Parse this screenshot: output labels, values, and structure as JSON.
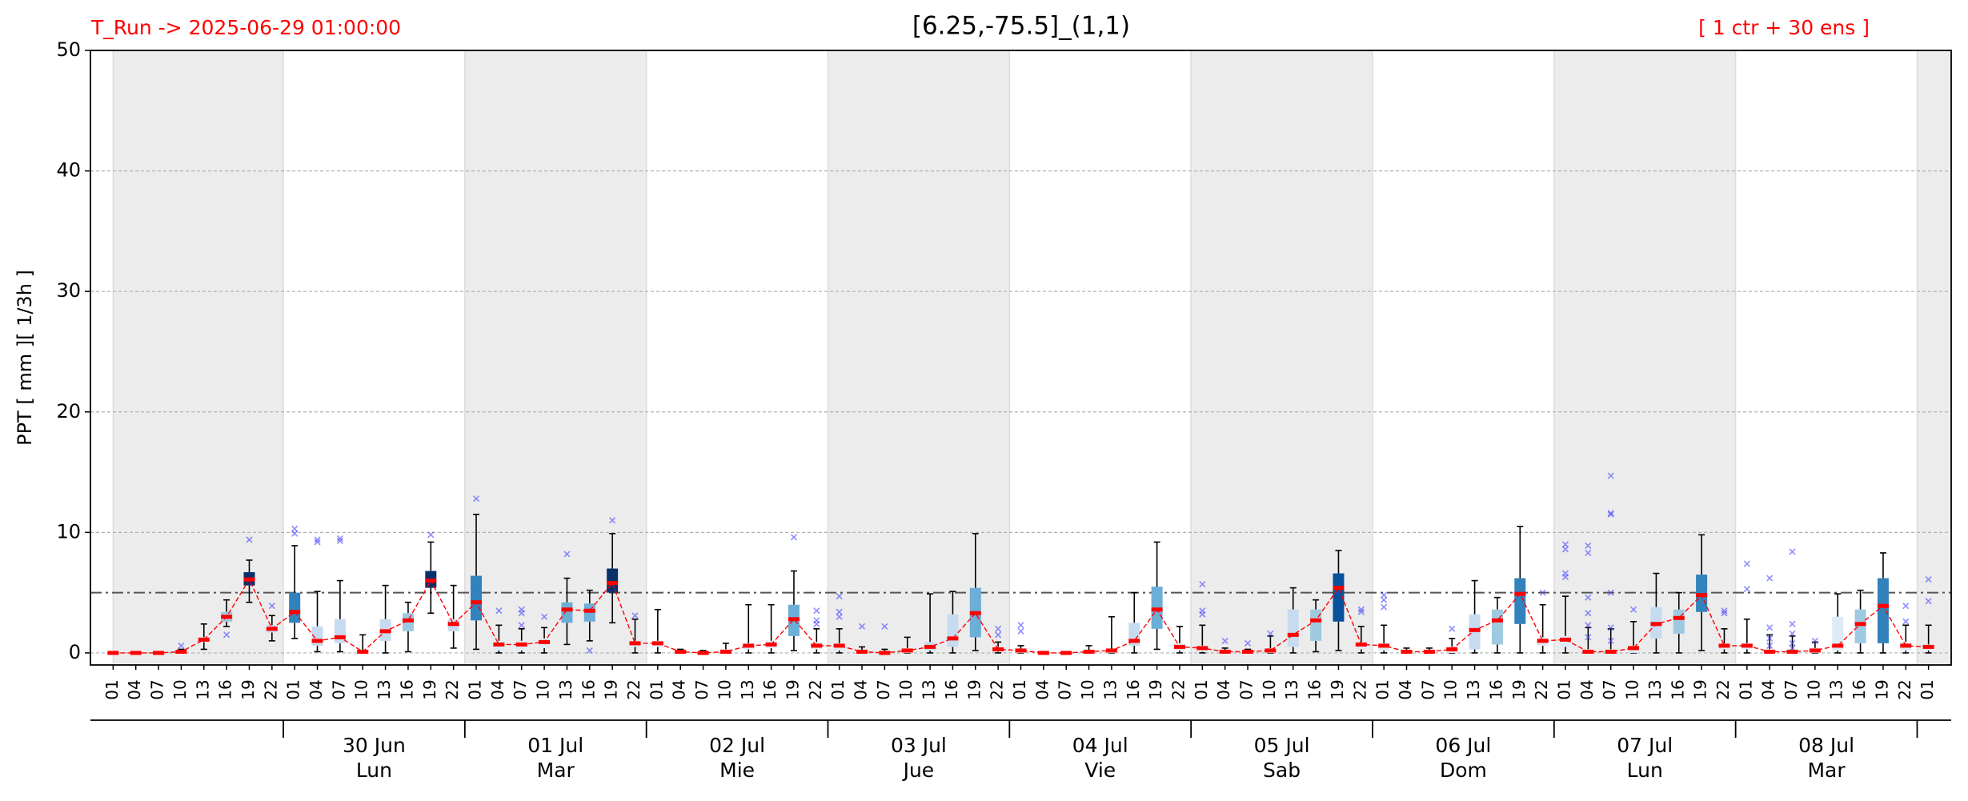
{
  "chart_data": {
    "type": "box",
    "title": "[6.25,-75.5]_(1,1)",
    "run_label": "T_Run -> 2025-06-29  01:00:00",
    "members_label": "[ 1 ctr + 30 ens ]",
    "y_label": "PPT  [ mm ][ 1/3h ]",
    "categories": [
      "01",
      "04",
      "07",
      "10",
      "13",
      "16",
      "19",
      "22",
      "01",
      "04",
      "07",
      "10",
      "13",
      "16",
      "19",
      "22",
      "01",
      "04",
      "07",
      "10",
      "13",
      "16",
      "19",
      "22",
      "01",
      "04",
      "07",
      "10",
      "13",
      "16",
      "19",
      "22",
      "01",
      "04",
      "07",
      "10",
      "13",
      "16",
      "19",
      "22",
      "01",
      "04",
      "07",
      "10",
      "13",
      "16",
      "19",
      "22",
      "01",
      "04",
      "07",
      "10",
      "13",
      "16",
      "19",
      "22",
      "01",
      "04",
      "07",
      "10",
      "13",
      "16",
      "19",
      "22",
      "01",
      "04",
      "07",
      "10",
      "13",
      "16",
      "19",
      "22",
      "01",
      "04",
      "07",
      "10",
      "13",
      "16",
      "19",
      "22",
      "01"
    ],
    "days": [
      {
        "date": "30 Jun",
        "weekday": "Lun"
      },
      {
        "date": "01 Jul",
        "weekday": "Mar"
      },
      {
        "date": "02 Jul",
        "weekday": "Mie"
      },
      {
        "date": "03 Jul",
        "weekday": "Jue"
      },
      {
        "date": "04 Jul",
        "weekday": "Vie"
      },
      {
        "date": "05 Jul",
        "weekday": "Sab"
      },
      {
        "date": "06 Jul",
        "weekday": "Dom"
      },
      {
        "date": "07 Jul",
        "weekday": "Lun"
      },
      {
        "date": "08 Jul",
        "weekday": "Mar"
      }
    ],
    "median": [
      0,
      0,
      0,
      0.1,
      1.1,
      3.0,
      6.1,
      2.0,
      3.4,
      1.0,
      1.3,
      0.1,
      1.8,
      2.7,
      6.0,
      2.4,
      4.2,
      0.7,
      0.7,
      0.9,
      3.6,
      3.5,
      5.8,
      0.8,
      0.8,
      0.1,
      0,
      0.1,
      0.6,
      0.7,
      2.8,
      0.6,
      0.6,
      0.1,
      0,
      0.2,
      0.5,
      1.2,
      3.3,
      0.3,
      0.2,
      0,
      0,
      0.1,
      0.2,
      1.0,
      3.6,
      0.5,
      0.4,
      0.1,
      0.1,
      0.2,
      1.5,
      2.7,
      5.4,
      0.7,
      0.6,
      0.1,
      0.1,
      0.3,
      1.9,
      2.7,
      4.9,
      1.0,
      1.1,
      0.1,
      0.1,
      0.4,
      2.4,
      2.9,
      4.8,
      0.6,
      0.6,
      0.1,
      0.1,
      0.2,
      0.6,
      2.4,
      3.9,
      0.6,
      0.5
    ],
    "q1": [
      0,
      0,
      0,
      0,
      0.9,
      2.6,
      5.6,
      1.7,
      2.5,
      0.6,
      0.8,
      0,
      1.0,
      1.8,
      5.4,
      1.8,
      2.7,
      0.2,
      0.2,
      0.4,
      2.5,
      2.6,
      5.0,
      0.5,
      0.5,
      0,
      0,
      0,
      0.3,
      0.4,
      1.4,
      0.3,
      0.2,
      0,
      0,
      0,
      0.2,
      0.5,
      1.3,
      0.1,
      0,
      0,
      0,
      0,
      0,
      0.6,
      2.0,
      0.2,
      0.1,
      0,
      0,
      0,
      0.5,
      1.0,
      2.6,
      0.3,
      0.2,
      0,
      0,
      0,
      0.3,
      0.7,
      2.4,
      0.6,
      0.5,
      0,
      0,
      0,
      1.2,
      1.6,
      3.4,
      0.3,
      0.3,
      0,
      0,
      0,
      0.2,
      0.8,
      0.8,
      0.2,
      0.2
    ],
    "q3": [
      0,
      0,
      0,
      0.2,
      1.3,
      3.4,
      6.7,
      2.3,
      5.0,
      2.2,
      2.8,
      0.2,
      2.8,
      3.3,
      6.8,
      2.8,
      6.4,
      1.0,
      1.0,
      1.2,
      4.2,
      4.1,
      7.0,
      1.0,
      1.0,
      0.2,
      0.1,
      0.3,
      0.8,
      1.0,
      4.0,
      0.9,
      0.8,
      0.2,
      0.1,
      0.4,
      0.9,
      3.2,
      5.4,
      0.5,
      0.3,
      0,
      0,
      0.2,
      0.3,
      2.5,
      5.5,
      0.8,
      0.6,
      0.2,
      0.2,
      0.4,
      3.6,
      3.6,
      6.6,
      0.9,
      0.8,
      0.2,
      0.2,
      0.5,
      3.2,
      3.6,
      6.2,
      1.3,
      1.4,
      0.3,
      0.3,
      0.6,
      3.8,
      3.6,
      6.5,
      0.8,
      0.8,
      0.3,
      0.3,
      0.4,
      3.0,
      3.6,
      6.2,
      0.9,
      0.7
    ],
    "whisker_low": [
      0,
      0,
      0,
      0,
      0.3,
      2.2,
      4.2,
      1.0,
      1.2,
      0.1,
      0.1,
      0,
      0,
      0.1,
      3.3,
      0.4,
      0.3,
      0,
      0,
      0,
      0.7,
      1.0,
      2.5,
      0,
      0,
      0,
      0,
      0,
      0,
      0,
      0.2,
      0,
      0,
      0,
      0,
      0,
      0,
      0,
      0.2,
      0,
      0,
      0,
      0,
      0,
      0,
      0,
      0.3,
      0,
      0,
      0,
      0,
      0,
      0,
      0.1,
      0.2,
      0,
      0,
      0,
      0,
      0,
      0,
      0,
      0,
      0,
      0,
      0,
      0,
      0,
      0,
      0,
      0.2,
      0,
      0,
      0,
      0,
      0,
      0,
      0,
      0,
      0,
      0
    ],
    "whisker_high": [
      0,
      0,
      0,
      0.3,
      2.4,
      4.4,
      7.7,
      3.1,
      8.9,
      5.1,
      6.0,
      1.5,
      5.6,
      4.2,
      9.2,
      5.6,
      11.5,
      2.3,
      2.0,
      2.1,
      6.2,
      5.2,
      9.9,
      2.8,
      3.6,
      0.3,
      0.2,
      0.8,
      4.0,
      4.0,
      6.8,
      2.0,
      2.0,
      0.5,
      0.3,
      1.3,
      4.9,
      5.1,
      9.9,
      0.9,
      0.6,
      0.1,
      0.1,
      0.6,
      3.0,
      5.0,
      9.2,
      2.2,
      2.3,
      0.4,
      0.3,
      1.4,
      5.4,
      4.4,
      8.5,
      2.2,
      2.3,
      0.4,
      0.4,
      1.2,
      6.0,
      4.6,
      10.5,
      4.0,
      4.7,
      2.1,
      2.0,
      2.6,
      6.6,
      5.0,
      9.8,
      2.0,
      2.8,
      1.5,
      1.4,
      0.9,
      4.9,
      5.2,
      8.3,
      2.3,
      2.3
    ],
    "outliers": [
      [],
      [],
      [],
      [
        0.6
      ],
      [],
      [
        1.5
      ],
      [
        9.4
      ],
      [
        3.9
      ],
      [
        10.3,
        9.9
      ],
      [
        9.4,
        9.2
      ],
      [
        9.5,
        9.3
      ],
      [],
      [],
      [],
      [
        9.8
      ],
      [],
      [
        12.8
      ],
      [
        3.5
      ],
      [
        3.6,
        3.3,
        2.3
      ],
      [
        3.0
      ],
      [
        8.2
      ],
      [
        0.2
      ],
      [
        11.0
      ],
      [
        3.1
      ],
      [],
      [],
      [],
      [],
      [],
      [],
      [
        9.6
      ],
      [
        3.5,
        2.7,
        2.4
      ],
      [
        4.7,
        3.4,
        3.0
      ],
      [
        2.2
      ],
      [
        2.2
      ],
      [],
      [],
      [],
      [],
      [
        2.0,
        1.5
      ],
      [
        2.3,
        1.8
      ],
      [],
      [],
      [],
      [],
      [],
      [],
      [],
      [
        5.7,
        3.5,
        3.2
      ],
      [
        1.0
      ],
      [
        0.8
      ],
      [
        1.6
      ],
      [],
      [],
      [],
      [
        3.6,
        3.4
      ],
      [
        4.8,
        4.4,
        3.8
      ],
      [],
      [],
      [
        2.0
      ],
      [],
      [],
      [],
      [
        5.0
      ],
      [
        9.0,
        8.6,
        6.6,
        6.3
      ],
      [
        8.9,
        8.3,
        4.6,
        3.3,
        2.3,
        1.3
      ],
      [
        14.7,
        11.5,
        11.6,
        5.0,
        2.1,
        1.0
      ],
      [
        3.6
      ],
      [],
      [],
      [],
      [
        3.5,
        3.3
      ],
      [
        7.4,
        5.3
      ],
      [
        6.2,
        2.1,
        1.2,
        0.6
      ],
      [
        8.4,
        2.4,
        1.6,
        0.8,
        0.4
      ],
      [
        1.0
      ],
      [],
      [],
      [],
      [
        3.9,
        2.6
      ],
      [
        6.1,
        4.3
      ]
    ],
    "box_colors": [
      "#deebf7",
      "#deebf7",
      "#deebf7",
      "#deebf7",
      "#c6dbef",
      "#9ecae1",
      "#08306b",
      "#c6dbef",
      "#3182bd",
      "#c6dbef",
      "#c6dbef",
      "#deebf7",
      "#c6dbef",
      "#9ecae1",
      "#08306b",
      "#c6dbef",
      "#3182bd",
      "#deebf7",
      "#deebf7",
      "#deebf7",
      "#6baed6",
      "#6baed6",
      "#08306b",
      "#deebf7",
      "#deebf7",
      "#deebf7",
      "#deebf7",
      "#deebf7",
      "#deebf7",
      "#deebf7",
      "#6baed6",
      "#deebf7",
      "#deebf7",
      "#deebf7",
      "#deebf7",
      "#deebf7",
      "#c6dbef",
      "#c6dbef",
      "#6baed6",
      "#deebf7",
      "#deebf7",
      "#deebf7",
      "#deebf7",
      "#deebf7",
      "#deebf7",
      "#c6dbef",
      "#6baed6",
      "#deebf7",
      "#deebf7",
      "#deebf7",
      "#deebf7",
      "#deebf7",
      "#c6dbef",
      "#9ecae1",
      "#08519c",
      "#deebf7",
      "#deebf7",
      "#deebf7",
      "#deebf7",
      "#deebf7",
      "#c6dbef",
      "#9ecae1",
      "#3182bd",
      "#deebf7",
      "#deebf7",
      "#deebf7",
      "#deebf7",
      "#deebf7",
      "#c6dbef",
      "#9ecae1",
      "#3182bd",
      "#deebf7",
      "#deebf7",
      "#deebf7",
      "#deebf7",
      "#deebf7",
      "#deebf7",
      "#9ecae1",
      "#3182bd",
      "#deebf7",
      "#deebf7"
    ],
    "median_color": "#ff0000",
    "outlier_color": "#4444ff",
    "threshold": 5,
    "xlim": [
      -1,
      81
    ],
    "ylim": [
      -1,
      50
    ],
    "yticks": [
      0,
      10,
      20,
      30,
      40,
      50
    ],
    "grid": true
  }
}
